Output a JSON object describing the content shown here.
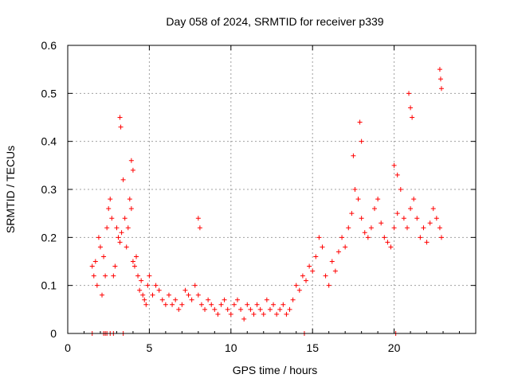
{
  "chart_data": {
    "type": "scatter",
    "title": "Day 058 of 2024, SRMTID for receiver p339",
    "xlabel": "GPS time / hours",
    "ylabel": "SRMTID / TECUs",
    "xlim": [
      0,
      25
    ],
    "ylim": [
      0,
      0.6
    ],
    "xticks": [
      0,
      5,
      10,
      15,
      20
    ],
    "yticks": [
      0,
      0.1,
      0.2,
      0.3,
      0.4,
      0.5,
      0.6
    ],
    "xtick_labels": [
      "0",
      "5",
      "10",
      "15",
      "20"
    ],
    "ytick_labels": [
      "0",
      "0.1",
      "0.2",
      "0.3",
      "0.4",
      "0.5",
      "0.6"
    ],
    "grid": true,
    "marker": "+",
    "series": [
      {
        "name": "SRMTID",
        "color": "#ff0000",
        "x": [
          1.5,
          1.6,
          1.7,
          1.8,
          1.9,
          2.0,
          2.1,
          2.2,
          2.3,
          2.4,
          2.5,
          2.6,
          2.7,
          2.8,
          2.9,
          3.0,
          3.1,
          3.2,
          3.3,
          3.4,
          3.5,
          3.6,
          3.7,
          3.8,
          3.9,
          4.0,
          4.1,
          4.2,
          4.3,
          4.4,
          4.5,
          4.6,
          4.7,
          4.8,
          4.9,
          5.0,
          5.2,
          5.4,
          5.6,
          5.8,
          6.0,
          6.2,
          6.4,
          6.6,
          6.8,
          7.0,
          7.2,
          7.4,
          7.6,
          7.8,
          8.0,
          8.2,
          8.4,
          8.6,
          8.8,
          9.0,
          9.2,
          9.4,
          9.6,
          9.8,
          10.0,
          10.2,
          10.4,
          10.6,
          10.8,
          11.0,
          11.2,
          11.4,
          11.6,
          11.8,
          12.0,
          12.2,
          12.4,
          12.6,
          12.8,
          13.0,
          13.2,
          13.4,
          13.6,
          13.8,
          14.0,
          14.2,
          14.4,
          14.6,
          14.8,
          15.0,
          15.2,
          15.4,
          15.6,
          15.8,
          16.0,
          16.2,
          16.4,
          16.6,
          16.8,
          17.0,
          17.2,
          17.4,
          17.6,
          17.8,
          18.0,
          18.2,
          18.4,
          18.6,
          18.8,
          19.0,
          19.2,
          19.4,
          19.6,
          19.8,
          20.0,
          20.2,
          20.4,
          20.6,
          20.8,
          21.0,
          21.2,
          21.4,
          21.6,
          21.8,
          22.0,
          22.2,
          22.4,
          22.6,
          22.8,
          22.9,
          3.2,
          3.25,
          3.9,
          4.0,
          8.0,
          8.1,
          17.9,
          18.0,
          17.5,
          20.9,
          21.0,
          21.1,
          22.8,
          22.85,
          22.9,
          20.0,
          20.2,
          1.5,
          2.2,
          2.4,
          2.8,
          14.5,
          20.1,
          2.3,
          2.6,
          3.4
        ],
        "y": [
          0.14,
          0.12,
          0.15,
          0.1,
          0.2,
          0.18,
          0.08,
          0.16,
          0.12,
          0.22,
          0.26,
          0.28,
          0.24,
          0.12,
          0.14,
          0.22,
          0.2,
          0.19,
          0.21,
          0.32,
          0.24,
          0.18,
          0.22,
          0.28,
          0.26,
          0.15,
          0.14,
          0.16,
          0.12,
          0.09,
          0.11,
          0.08,
          0.07,
          0.06,
          0.1,
          0.12,
          0.08,
          0.1,
          0.09,
          0.07,
          0.06,
          0.08,
          0.06,
          0.07,
          0.05,
          0.06,
          0.09,
          0.08,
          0.07,
          0.1,
          0.08,
          0.06,
          0.05,
          0.07,
          0.06,
          0.05,
          0.04,
          0.06,
          0.07,
          0.05,
          0.04,
          0.06,
          0.07,
          0.05,
          0.03,
          0.06,
          0.05,
          0.04,
          0.06,
          0.05,
          0.04,
          0.07,
          0.05,
          0.06,
          0.04,
          0.05,
          0.06,
          0.04,
          0.05,
          0.07,
          0.1,
          0.09,
          0.12,
          0.11,
          0.14,
          0.13,
          0.16,
          0.2,
          0.18,
          0.12,
          0.1,
          0.15,
          0.13,
          0.17,
          0.2,
          0.18,
          0.22,
          0.25,
          0.3,
          0.28,
          0.24,
          0.21,
          0.2,
          0.22,
          0.26,
          0.28,
          0.23,
          0.2,
          0.19,
          0.18,
          0.22,
          0.25,
          0.3,
          0.24,
          0.22,
          0.26,
          0.28,
          0.24,
          0.2,
          0.22,
          0.19,
          0.23,
          0.26,
          0.24,
          0.22,
          0.2,
          0.45,
          0.43,
          0.36,
          0.34,
          0.24,
          0.22,
          0.44,
          0.4,
          0.37,
          0.5,
          0.47,
          0.45,
          0.55,
          0.53,
          0.51,
          0.35,
          0.33,
          0.0,
          0.0,
          0.0,
          0.0,
          0.0,
          0.0,
          0.0,
          0.0,
          0.0
        ]
      }
    ]
  }
}
